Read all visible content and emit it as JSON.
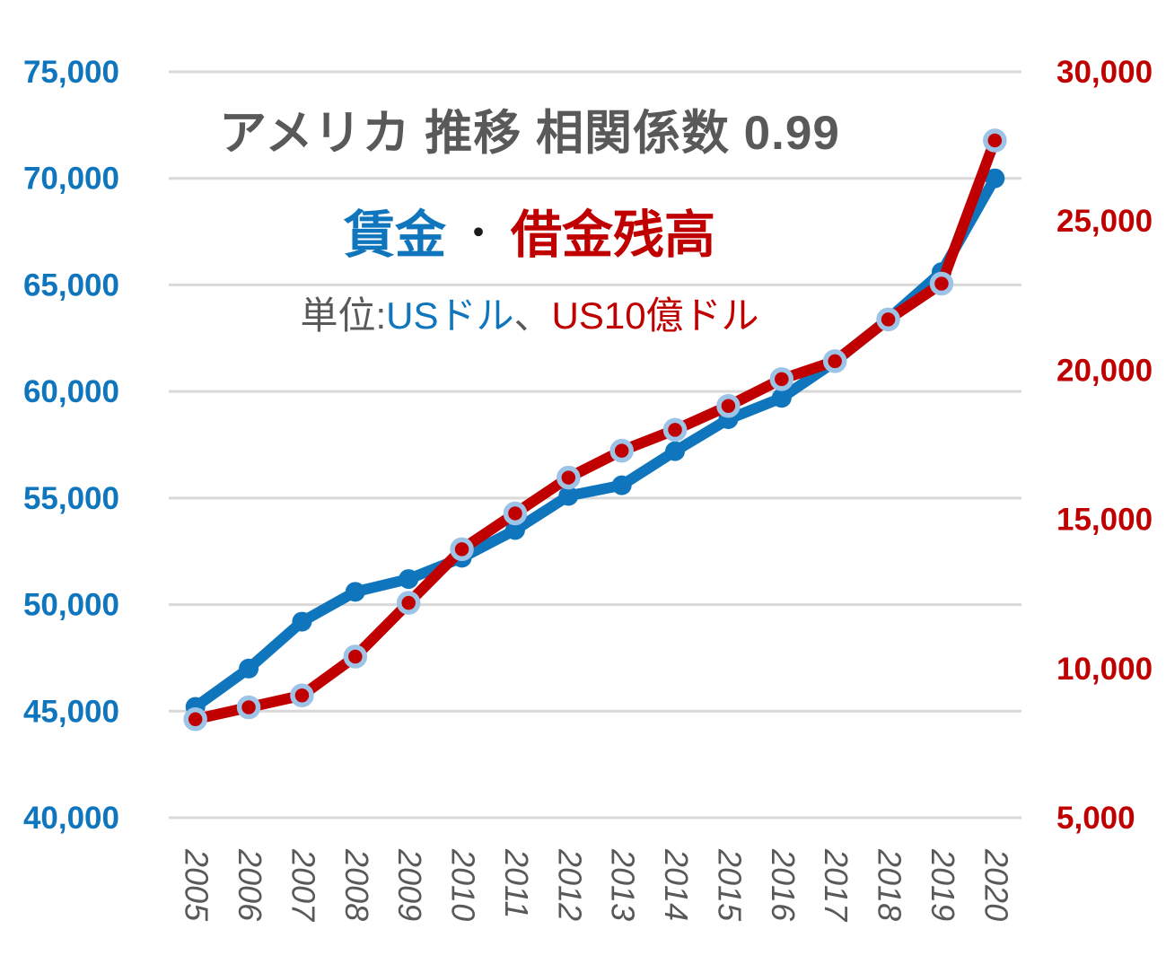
{
  "header": {
    "title": "アメリカ 推移 相関係数 0.99",
    "legend": {
      "wage_label": "賃金",
      "separator": "・",
      "debt_label": "借金残高"
    },
    "units": {
      "prefix": "単位:",
      "wage_unit": "USドル",
      "comma": "、",
      "debt_unit": "US10億ドル"
    }
  },
  "colors": {
    "wage_blue": "#0F76BD",
    "debt_red": "#C00000",
    "marker_ring": "#9DC3E6",
    "gridline": "#D9D9D9",
    "title_gray": "#595959",
    "background": "#FFFFFF"
  },
  "chart_data": {
    "type": "line",
    "title": "アメリカ 推移 相関係数 0.99",
    "subtitle": "賃金 ・ 借金残高",
    "unit_note": "単位:USドル、US10億ドル",
    "correlation_coefficient": 0.99,
    "categories": [
      "2005",
      "2006",
      "2007",
      "2008",
      "2009",
      "2010",
      "2011",
      "2012",
      "2013",
      "2014",
      "2015",
      "2016",
      "2017",
      "2018",
      "2019",
      "2020"
    ],
    "series": [
      {
        "name": "賃金",
        "axis": "left",
        "unit": "USドル",
        "color": "#0F76BD",
        "marker": "solid-circle",
        "values": [
          45200,
          47000,
          49200,
          50600,
          51200,
          52200,
          53500,
          55100,
          55600,
          57200,
          58700,
          59700,
          61400,
          63400,
          65600,
          70000
        ]
      },
      {
        "name": "借金残高",
        "axis": "right",
        "unit": "US10億ドル",
        "color": "#C00000",
        "marker": "ring-circle",
        "marker_ring_color": "#9DC3E6",
        "values": [
          8300,
          8700,
          9100,
          10400,
          12200,
          14000,
          15200,
          16400,
          17300,
          18000,
          18800,
          19700,
          20300,
          21700,
          22900,
          27700
        ]
      }
    ],
    "left_axis": {
      "min": 40000,
      "max": 75000,
      "tick_step": 5000,
      "color": "#0F76BD",
      "tick_labels": [
        "75,000",
        "70,000",
        "65,000",
        "60,000",
        "55,000",
        "50,000",
        "45,000",
        "40,000"
      ]
    },
    "right_axis": {
      "min": 5000,
      "max": 30000,
      "tick_step": 5000,
      "color": "#C00000",
      "tick_labels": [
        "30,000",
        "25,000",
        "20,000",
        "15,000",
        "10,000",
        "5,000"
      ]
    },
    "x_axis": {
      "label_color": "#595959",
      "label_rotation_deg": 90
    },
    "grid": {
      "show": true,
      "color": "#D9D9D9"
    },
    "legend_position": "inline-subtitle"
  }
}
